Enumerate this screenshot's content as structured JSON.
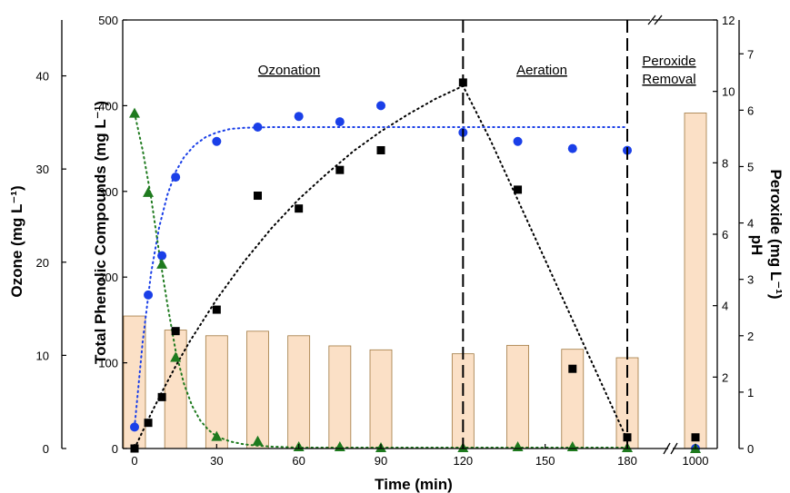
{
  "chart_data": {
    "type": "bar",
    "xlabel": "Time (min)",
    "x_ticks": [
      "0",
      "30",
      "60",
      "90",
      "120",
      "150",
      "180",
      "1000"
    ],
    "axes": {
      "ozone": {
        "label": "Ozone (mg L⁻¹)",
        "ylim": [
          0,
          46
        ],
        "ticks": [
          0,
          10,
          20,
          30,
          40
        ]
      },
      "phenolic": {
        "label": "Total Phenolic Compounds (mg L⁻¹)",
        "ylim": [
          0,
          500
        ],
        "ticks": [
          0,
          100,
          200,
          300,
          400,
          500
        ]
      },
      "ph": {
        "label": "pH",
        "ylim": [
          0,
          12
        ],
        "ticks": [
          2,
          4,
          6,
          8,
          10,
          12
        ]
      },
      "peroxide": {
        "label": "Peroxide (mg L⁻¹)",
        "ylim": [
          0,
          7.6
        ],
        "ticks": [
          0,
          1,
          2,
          3,
          4,
          5,
          6,
          7
        ]
      }
    },
    "phases": [
      {
        "label": "Ozonation"
      },
      {
        "label": "Aeration"
      },
      {
        "label": "Peroxide",
        "label2": "Removal"
      }
    ],
    "phase_boundaries": [
      120,
      180
    ],
    "series": [
      {
        "key": "peroxide",
        "mark": "bar",
        "axis": "peroxide",
        "color": "#fbe0c6",
        "edge": "#a07840",
        "x": [
          0,
          15,
          30,
          45,
          60,
          75,
          90,
          120,
          140,
          160,
          180,
          1000
        ],
        "values": [
          2.35,
          2.1,
          2.0,
          2.08,
          2.0,
          1.82,
          1.75,
          1.68,
          1.83,
          1.76,
          1.61,
          5.95
        ]
      },
      {
        "key": "phenolic",
        "mark": "square",
        "axis": "phenolic",
        "color": "#000000",
        "x": [
          0,
          5,
          10,
          15,
          30,
          45,
          60,
          75,
          90,
          120,
          140,
          160,
          180,
          1000
        ],
        "values": [
          0,
          30,
          60,
          137,
          162,
          295,
          280,
          325,
          348,
          427,
          302,
          93,
          13,
          13
        ]
      },
      {
        "key": "ph",
        "mark": "circle",
        "axis": "ph",
        "color": "#1a3fe8",
        "x": [
          0,
          5,
          10,
          15,
          30,
          45,
          60,
          75,
          90,
          120,
          140,
          160,
          180,
          1000
        ],
        "values": [
          0.6,
          4.3,
          5.4,
          7.6,
          8.6,
          9.0,
          9.3,
          9.15,
          9.6,
          8.85,
          8.6,
          8.4,
          8.35,
          0
        ]
      },
      {
        "key": "ozone",
        "mark": "triangle",
        "axis": "ozone",
        "color": "#1e7a1e",
        "x": [
          0,
          5,
          10,
          15,
          30,
          45,
          60,
          75,
          90,
          120,
          140,
          160,
          180,
          1000
        ],
        "values": [
          36,
          27.5,
          19.8,
          9.8,
          1.3,
          0.8,
          0.2,
          0.2,
          0.1,
          0.1,
          0.2,
          0.2,
          0.1,
          0
        ]
      }
    ],
    "fit_lines": [
      {
        "key": "phenolic",
        "axis": "phenolic",
        "color": "#000000",
        "x": [
          0,
          5,
          10,
          15,
          20,
          30,
          40,
          50,
          60,
          70,
          80,
          90,
          100,
          110,
          120,
          130,
          140,
          150,
          160,
          170,
          180
        ],
        "values": [
          0,
          34,
          66,
          96,
          124,
          174,
          218,
          257,
          291,
          320,
          347,
          370,
          390,
          408,
          423,
          360,
          290,
          220,
          150,
          80,
          10
        ]
      },
      {
        "key": "ph",
        "axis": "ph",
        "color": "#1a3fe8",
        "x": [
          0,
          3,
          6,
          9,
          12,
          15,
          18,
          22,
          26,
          30,
          35,
          40,
          50,
          60,
          90,
          120,
          150,
          180
        ],
        "values": [
          0.6,
          3.0,
          4.9,
          6.2,
          7.1,
          7.75,
          8.15,
          8.5,
          8.72,
          8.85,
          8.95,
          8.98,
          9.0,
          9.0,
          9.0,
          9.0,
          9.0,
          9.0
        ]
      },
      {
        "key": "ozone",
        "axis": "ozone",
        "color": "#1e7a1e",
        "x": [
          0,
          3,
          6,
          9,
          12,
          15,
          18,
          21,
          24,
          27,
          30,
          35,
          40,
          45,
          50,
          60,
          90,
          120,
          150,
          180
        ],
        "values": [
          36,
          32,
          27,
          21,
          15.5,
          10.5,
          7,
          4.6,
          3,
          2,
          1.3,
          0.75,
          0.45,
          0.3,
          0.2,
          0.1,
          0.1,
          0.1,
          0.1,
          0.1
        ]
      }
    ]
  }
}
